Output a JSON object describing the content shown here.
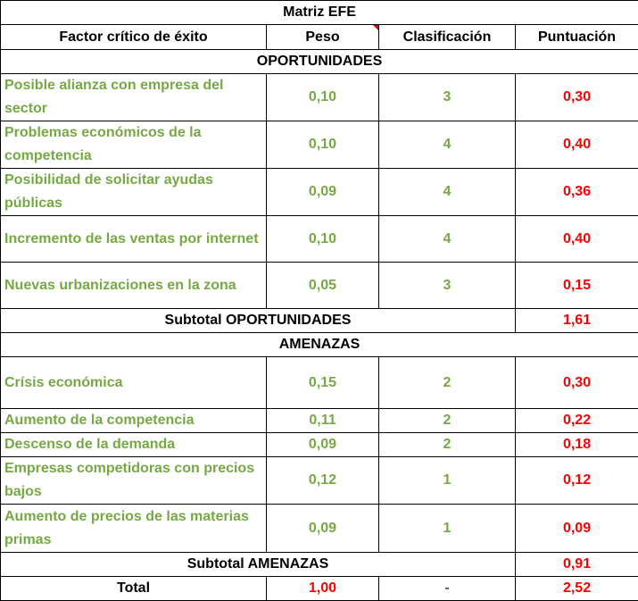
{
  "title": "Matriz EFE",
  "headers": {
    "factor": "Factor crítico de éxito",
    "peso": "Peso",
    "clasificacion": "Clasificación",
    "puntuacion": "Puntuación"
  },
  "oportunidades": {
    "label": "OPORTUNIDADES",
    "rows": [
      {
        "factor": "Posible alianza con empresa del sector",
        "peso": "0,10",
        "clasificacion": "3",
        "puntuacion": "0,30"
      },
      {
        "factor": "Problemas económicos de la competencia",
        "peso": "0,10",
        "clasificacion": "4",
        "puntuacion": "0,40"
      },
      {
        "factor": "Posibilidad de solicitar ayudas públicas",
        "peso": "0,09",
        "clasificacion": "4",
        "puntuacion": "0,36"
      },
      {
        "factor": "Incremento de las ventas por internet",
        "peso": "0,10",
        "clasificacion": "4",
        "puntuacion": "0,40"
      },
      {
        "factor": "Nuevas urbanizaciones en la zona",
        "peso": "0,05",
        "clasificacion": "3",
        "puntuacion": "0,15"
      }
    ],
    "subtotal_label": "Subtotal OPORTUNIDADES",
    "subtotal_value": "1,61"
  },
  "amenazas": {
    "label": "AMENAZAS",
    "rows": [
      {
        "factor": "Crísis económica",
        "peso": "0,15",
        "clasificacion": "2",
        "puntuacion": "0,30"
      },
      {
        "factor": "Aumento de la competencia",
        "peso": "0,11",
        "clasificacion": "2",
        "puntuacion": "0,22"
      },
      {
        "factor": "Descenso de la demanda",
        "peso": "0,09",
        "clasificacion": "2",
        "puntuacion": "0,18"
      },
      {
        "factor": "Empresas competidoras con precios bajos",
        "peso": "0,12",
        "clasificacion": "1",
        "puntuacion": "0,12"
      },
      {
        "factor": "Aumento de precios de las materias primas",
        "peso": "0,09",
        "clasificacion": "1",
        "puntuacion": "0,09"
      }
    ],
    "subtotal_label": "Subtotal AMENAZAS",
    "subtotal_value": "0,91"
  },
  "total": {
    "label": "Total",
    "peso": "1,00",
    "clasificacion": "-",
    "puntuacion": "2,52"
  },
  "colors": {
    "green": "#76a844",
    "red": "#ff0000",
    "comment_marker": "#d40000"
  }
}
